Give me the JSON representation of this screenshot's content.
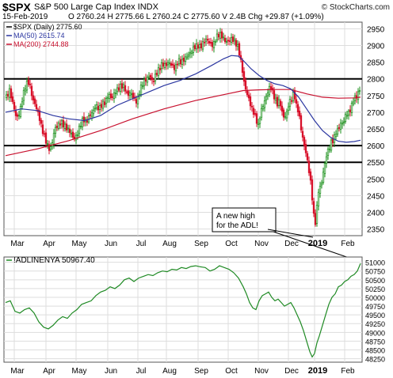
{
  "header": {
    "symbol": "$SPX",
    "description": "S&P 500 Large Cap Index INDX",
    "source": "© StockCharts.com",
    "date": "15-Feb-2019",
    "quote": "O 2760.24  H 2775.66  L 2760.24  C 2775.60  V 2.4B  Chg +29.87 (+1.09%)"
  },
  "colors": {
    "up": "#1a8f1a",
    "down": "#d8102a",
    "ma50": "#2b36a0",
    "ma200": "#c8102e",
    "adl": "#1f8a24",
    "grid": "#dddddd"
  },
  "chart_data": [
    {
      "type": "candlestick",
      "legend": [
        "$SPX (Daily) 2775.60",
        "MA(50) 2615.74",
        "MA(200) 2744.88"
      ],
      "ylim": [
        2330,
        2970
      ],
      "y_ticks": [
        2350,
        2400,
        2450,
        2500,
        2550,
        2600,
        2650,
        2700,
        2750,
        2800,
        2850,
        2900,
        2950
      ],
      "x_labels": [
        "Mar",
        "Apr",
        "May",
        "Jun",
        "Jul",
        "Aug",
        "Sep",
        "Oct",
        "Nov",
        "Dec",
        "2019",
        "Feb"
      ],
      "horizontal_lines": [
        2800,
        2600,
        2550
      ],
      "annotation": [
        "A new high",
        "for the ADL!"
      ],
      "close_path": [
        [
          0,
          2740
        ],
        [
          5,
          2765
        ],
        [
          10,
          2720
        ],
        [
          14,
          2680
        ],
        [
          18,
          2700
        ],
        [
          22,
          2750
        ],
        [
          26,
          2785
        ],
        [
          30,
          2790
        ],
        [
          34,
          2740
        ],
        [
          38,
          2720
        ],
        [
          42,
          2690
        ],
        [
          46,
          2650
        ],
        [
          50,
          2620
        ],
        [
          53,
          2600
        ],
        [
          56,
          2585
        ],
        [
          59,
          2610
        ],
        [
          62,
          2650
        ],
        [
          66,
          2660
        ],
        [
          70,
          2670
        ],
        [
          74,
          2660
        ],
        [
          78,
          2650
        ],
        [
          82,
          2640
        ],
        [
          86,
          2620
        ],
        [
          90,
          2630
        ],
        [
          94,
          2660
        ],
        [
          98,
          2680
        ],
        [
          102,
          2670
        ],
        [
          106,
          2690
        ],
        [
          110,
          2700
        ],
        [
          114,
          2720
        ],
        [
          118,
          2710
        ],
        [
          122,
          2725
        ],
        [
          126,
          2730
        ],
        [
          130,
          2755
        ],
        [
          134,
          2740
        ],
        [
          138,
          2760
        ],
        [
          142,
          2770
        ],
        [
          146,
          2780
        ],
        [
          150,
          2775
        ],
        [
          154,
          2750
        ],
        [
          158,
          2760
        ],
        [
          162,
          2740
        ],
        [
          166,
          2730
        ],
        [
          170,
          2770
        ],
        [
          174,
          2790
        ],
        [
          178,
          2800
        ],
        [
          182,
          2810
        ],
        [
          186,
          2790
        ],
        [
          190,
          2815
        ],
        [
          194,
          2830
        ],
        [
          198,
          2845
        ],
        [
          202,
          2840
        ],
        [
          206,
          2850
        ],
        [
          210,
          2840
        ],
        [
          214,
          2830
        ],
        [
          218,
          2855
        ],
        [
          222,
          2850
        ],
        [
          226,
          2860
        ],
        [
          230,
          2870
        ],
        [
          234,
          2880
        ],
        [
          238,
          2895
        ],
        [
          242,
          2900
        ],
        [
          246,
          2895
        ],
        [
          250,
          2910
        ],
        [
          254,
          2920
        ],
        [
          258,
          2905
        ],
        [
          262,
          2900
        ],
        [
          266,
          2925
        ],
        [
          270,
          2935
        ],
        [
          274,
          2925
        ],
        [
          278,
          2910
        ],
        [
          282,
          2915
        ],
        [
          286,
          2920
        ],
        [
          290,
          2910
        ],
        [
          294,
          2890
        ],
        [
          298,
          2840
        ],
        [
          301,
          2790
        ],
        [
          304,
          2760
        ],
        [
          307,
          2740
        ],
        [
          310,
          2715
        ],
        [
          313,
          2700
        ],
        [
          316,
          2680
        ],
        [
          319,
          2660
        ],
        [
          322,
          2700
        ],
        [
          325,
          2720
        ],
        [
          328,
          2740
        ],
        [
          331,
          2760
        ],
        [
          334,
          2780
        ],
        [
          337,
          2760
        ],
        [
          340,
          2740
        ],
        [
          343,
          2725
        ],
        [
          346,
          2735
        ],
        [
          349,
          2700
        ],
        [
          352,
          2680
        ],
        [
          355,
          2700
        ],
        [
          358,
          2730
        ],
        [
          361,
          2740
        ],
        [
          364,
          2760
        ],
        [
          367,
          2720
        ],
        [
          370,
          2700
        ],
        [
          373,
          2650
        ],
        [
          376,
          2610
        ],
        [
          379,
          2580
        ],
        [
          382,
          2540
        ],
        [
          385,
          2490
        ],
        [
          388,
          2420
        ],
        [
          390,
          2360
        ],
        [
          392,
          2380
        ],
        [
          394,
          2450
        ],
        [
          396,
          2480
        ],
        [
          398,
          2470
        ],
        [
          400,
          2510
        ],
        [
          402,
          2530
        ],
        [
          404,
          2560
        ],
        [
          406,
          2580
        ],
        [
          408,
          2590
        ],
        [
          410,
          2600
        ],
        [
          412,
          2620
        ],
        [
          414,
          2610
        ],
        [
          416,
          2640
        ],
        [
          418,
          2640
        ],
        [
          420,
          2650
        ],
        [
          422,
          2660
        ],
        [
          424,
          2670
        ],
        [
          426,
          2665
        ],
        [
          428,
          2680
        ],
        [
          430,
          2700
        ],
        [
          432,
          2690
        ],
        [
          434,
          2705
        ],
        [
          436,
          2710
        ],
        [
          438,
          2730
        ],
        [
          440,
          2745
        ],
        [
          442,
          2740
        ],
        [
          444,
          2755
        ],
        [
          446,
          2760
        ],
        [
          448,
          2775
        ]
      ],
      "ma50_path": [
        [
          0,
          2700
        ],
        [
          20,
          2710
        ],
        [
          40,
          2705
        ],
        [
          60,
          2690
        ],
        [
          80,
          2680
        ],
        [
          100,
          2675
        ],
        [
          120,
          2690
        ],
        [
          140,
          2720
        ],
        [
          160,
          2740
        ],
        [
          180,
          2760
        ],
        [
          200,
          2780
        ],
        [
          220,
          2795
        ],
        [
          240,
          2815
        ],
        [
          260,
          2840
        ],
        [
          275,
          2860
        ],
        [
          285,
          2870
        ],
        [
          294,
          2868
        ],
        [
          300,
          2855
        ],
        [
          310,
          2830
        ],
        [
          320,
          2810
        ],
        [
          330,
          2795
        ],
        [
          340,
          2785
        ],
        [
          350,
          2780
        ],
        [
          360,
          2770
        ],
        [
          370,
          2745
        ],
        [
          380,
          2710
        ],
        [
          390,
          2675
        ],
        [
          400,
          2645
        ],
        [
          410,
          2625
        ],
        [
          420,
          2613
        ],
        [
          430,
          2610
        ],
        [
          440,
          2612
        ],
        [
          448,
          2616
        ]
      ],
      "ma200_path": [
        [
          0,
          2570
        ],
        [
          40,
          2590
        ],
        [
          80,
          2615
        ],
        [
          120,
          2645
        ],
        [
          160,
          2680
        ],
        [
          200,
          2710
        ],
        [
          240,
          2735
        ],
        [
          280,
          2755
        ],
        [
          300,
          2765
        ],
        [
          320,
          2767
        ],
        [
          340,
          2768
        ],
        [
          360,
          2768
        ],
        [
          380,
          2755
        ],
        [
          400,
          2745
        ],
        [
          420,
          2742
        ],
        [
          440,
          2743
        ],
        [
          448,
          2745
        ]
      ]
    },
    {
      "type": "line",
      "series_label": "!ADLINENYA 50967.40",
      "ylim": [
        48150,
        51150
      ],
      "y_ticks": [
        48250,
        48500,
        48750,
        49000,
        49250,
        49500,
        49750,
        50000,
        50250,
        50500,
        50750,
        51000
      ],
      "x_labels": [
        "Mar",
        "Apr",
        "May",
        "Jun",
        "Jul",
        "Aug",
        "Sep",
        "Oct",
        "Nov",
        "Dec",
        "2019",
        "Feb"
      ],
      "values": [
        [
          0,
          49850
        ],
        [
          6,
          49900
        ],
        [
          12,
          49600
        ],
        [
          18,
          49550
        ],
        [
          24,
          49650
        ],
        [
          30,
          49700
        ],
        [
          36,
          49550
        ],
        [
          42,
          49300
        ],
        [
          48,
          49150
        ],
        [
          54,
          49100
        ],
        [
          60,
          49200
        ],
        [
          66,
          49350
        ],
        [
          72,
          49450
        ],
        [
          78,
          49400
        ],
        [
          84,
          49550
        ],
        [
          90,
          49650
        ],
        [
          96,
          49800
        ],
        [
          102,
          49850
        ],
        [
          108,
          49900
        ],
        [
          114,
          50050
        ],
        [
          120,
          50150
        ],
        [
          126,
          50200
        ],
        [
          132,
          50300
        ],
        [
          138,
          50250
        ],
        [
          144,
          50350
        ],
        [
          150,
          50500
        ],
        [
          156,
          50550
        ],
        [
          162,
          50450
        ],
        [
          168,
          50550
        ],
        [
          174,
          50600
        ],
        [
          180,
          50650
        ],
        [
          186,
          50620
        ],
        [
          192,
          50700
        ],
        [
          198,
          50750
        ],
        [
          204,
          50730
        ],
        [
          210,
          50800
        ],
        [
          216,
          50780
        ],
        [
          222,
          50850
        ],
        [
          228,
          50820
        ],
        [
          234,
          50880
        ],
        [
          240,
          50900
        ],
        [
          246,
          50870
        ],
        [
          252,
          50850
        ],
        [
          258,
          50750
        ],
        [
          264,
          50800
        ],
        [
          270,
          50900
        ],
        [
          276,
          50850
        ],
        [
          282,
          50800
        ],
        [
          288,
          50700
        ],
        [
          294,
          50550
        ],
        [
          300,
          50300
        ],
        [
          304,
          50100
        ],
        [
          308,
          49850
        ],
        [
          312,
          49700
        ],
        [
          316,
          49650
        ],
        [
          320,
          49900
        ],
        [
          324,
          50050
        ],
        [
          328,
          50100
        ],
        [
          332,
          50150
        ],
        [
          336,
          50000
        ],
        [
          340,
          49900
        ],
        [
          344,
          49950
        ],
        [
          348,
          49850
        ],
        [
          352,
          49750
        ],
        [
          356,
          49800
        ],
        [
          360,
          49850
        ],
        [
          364,
          49700
        ],
        [
          368,
          49500
        ],
        [
          372,
          49300
        ],
        [
          376,
          49050
        ],
        [
          380,
          48750
        ],
        [
          384,
          48450
        ],
        [
          387,
          48300
        ],
        [
          390,
          48400
        ],
        [
          393,
          48700
        ],
        [
          396,
          48900
        ],
        [
          400,
          49200
        ],
        [
          404,
          49500
        ],
        [
          408,
          49800
        ],
        [
          412,
          50000
        ],
        [
          416,
          50100
        ],
        [
          420,
          50300
        ],
        [
          424,
          50350
        ],
        [
          428,
          50450
        ],
        [
          432,
          50500
        ],
        [
          436,
          50600
        ],
        [
          440,
          50650
        ],
        [
          444,
          50750
        ],
        [
          448,
          50967
        ]
      ]
    }
  ]
}
